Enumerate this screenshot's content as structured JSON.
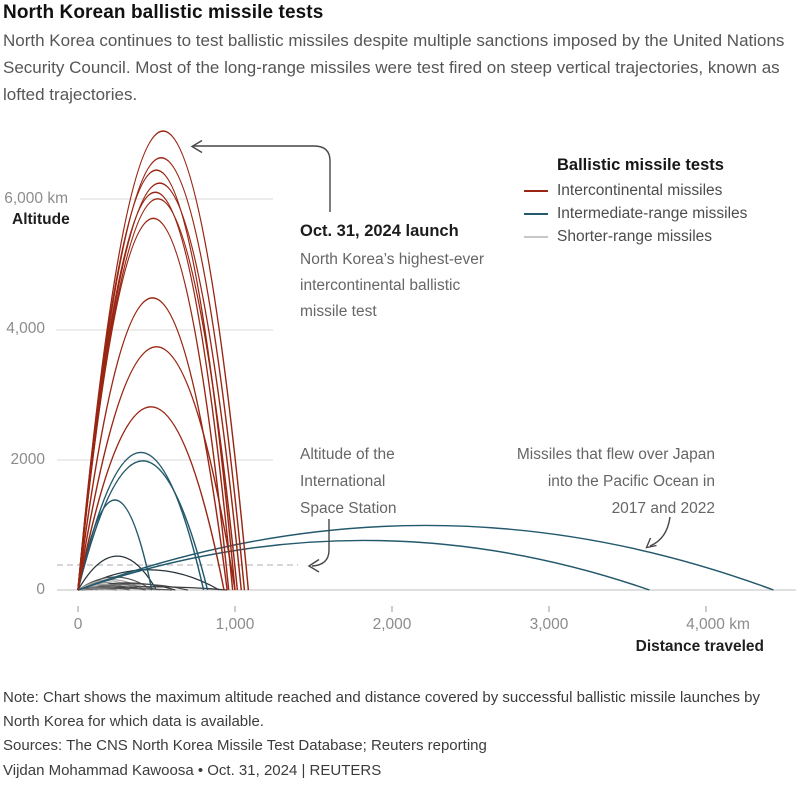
{
  "header": {
    "title": "North Korean ballistic missile tests",
    "subtitle": "North Korea continues to test ballistic missiles despite multiple sanctions imposed by the United Nations Security Council. Most of the long-range missiles were test fired on steep vertical trajectories, known as lofted trajectories."
  },
  "legend": {
    "title": "Ballistic missile tests",
    "items": [
      {
        "label": "Intercontinental missiles",
        "color": "#992613"
      },
      {
        "label": "Intermediate-range missiles",
        "color": "#23596c"
      },
      {
        "label": "Shorter-range missiles",
        "color": "#c7c7c7"
      }
    ]
  },
  "chart_data": {
    "type": "line",
    "title": "North Korean ballistic missile tests",
    "xlabel": "Distance traveled",
    "ylabel": "Altitude",
    "xlim": [
      0,
      4570
    ],
    "ylim": [
      0,
      7200
    ],
    "grid": "horizontal",
    "x_ticks": [
      {
        "value": 0,
        "label": "0"
      },
      {
        "value": 1000,
        "label": "1,000"
      },
      {
        "value": 2000,
        "label": "2,000"
      },
      {
        "value": 3000,
        "label": "3,000"
      },
      {
        "value": 4000,
        "label": "4,000 km"
      }
    ],
    "y_ticks": [
      {
        "value": 0,
        "label": "0"
      },
      {
        "value": 2000,
        "label": "2000"
      },
      {
        "value": 4000,
        "label": "4,000"
      },
      {
        "value": 6000,
        "label": "6,000 km"
      }
    ],
    "iss_dashed_line_altitude_km": 420,
    "series": [
      {
        "name": "Shorter-range missiles",
        "color": "#b9b9b9",
        "trajectories": [
          {
            "apogee_km": 520,
            "range_km": 500,
            "color": "#263238"
          },
          {
            "apogee_km": 310,
            "range_km": 900,
            "color": "#263238"
          },
          {
            "apogee_km": 200,
            "range_km": 470,
            "color": "#555555"
          },
          {
            "apogee_km": 160,
            "range_km": 420,
            "color": "#9e9e9e"
          },
          {
            "apogee_km": 140,
            "range_km": 380,
            "color": "#b9b9b9"
          },
          {
            "apogee_km": 120,
            "range_km": 320,
            "color": "#8a8a8a"
          },
          {
            "apogee_km": 110,
            "range_km": 620,
            "color": "#3a3a3a"
          },
          {
            "apogee_km": 100,
            "range_km": 280,
            "color": "#b9b9b9"
          },
          {
            "apogee_km": 95,
            "range_km": 700,
            "color": "#4a4a4a"
          },
          {
            "apogee_km": 90,
            "range_km": 240,
            "color": "#9e9e9e"
          },
          {
            "apogee_km": 80,
            "range_km": 520,
            "color": "#777777"
          },
          {
            "apogee_km": 70,
            "range_km": 200,
            "color": "#b9b9b9"
          },
          {
            "apogee_km": 60,
            "range_km": 430,
            "color": "#555555"
          },
          {
            "apogee_km": 55,
            "range_km": 160,
            "color": "#9e9e9e"
          },
          {
            "apogee_km": 50,
            "range_km": 950,
            "color": "#3a3a3a"
          },
          {
            "apogee_km": 45,
            "range_km": 120,
            "color": "#8a8a8a"
          },
          {
            "apogee_km": 40,
            "range_km": 330,
            "color": "#666666"
          },
          {
            "apogee_km": 30,
            "range_km": 90,
            "color": "#444444"
          },
          {
            "apogee_km": 25,
            "range_km": 600,
            "color": "#555555"
          },
          {
            "apogee_km": 20,
            "range_km": 250,
            "color": "#888888"
          }
        ]
      },
      {
        "name": "Intermediate-range missiles",
        "color": "#23596c",
        "trajectories": [
          {
            "apogee_km": 2110,
            "range_km": 800
          },
          {
            "apogee_km": 1980,
            "range_km": 825
          },
          {
            "apogee_km": 1380,
            "range_km": 470
          },
          {
            "apogee_km": 990,
            "range_km": 4430
          },
          {
            "apogee_km": 760,
            "range_km": 3640
          }
        ]
      },
      {
        "name": "Intercontinental missiles",
        "color": "#992613",
        "trajectories": [
          {
            "apogee_km": 7040,
            "range_km": 1085
          },
          {
            "apogee_km": 6630,
            "range_km": 1060
          },
          {
            "apogee_km": 6440,
            "range_km": 1000
          },
          {
            "apogee_km": 6240,
            "range_km": 1040
          },
          {
            "apogee_km": 6100,
            "range_km": 985
          },
          {
            "apogee_km": 6000,
            "range_km": 1015
          },
          {
            "apogee_km": 5700,
            "range_km": 960
          },
          {
            "apogee_km": 4480,
            "range_km": 950
          },
          {
            "apogee_km": 3730,
            "range_km": 1000
          },
          {
            "apogee_km": 2810,
            "range_km": 930
          }
        ]
      }
    ]
  },
  "annotations": {
    "launch": {
      "title": "Oct. 31, 2024 launch",
      "body": "North Korea’s highest-ever intercontinental ballistic missile test"
    },
    "iss": {
      "text": "Altitude of the International Space Station"
    },
    "japan": {
      "text": "Missiles that flew over Japan into the Pacific Ocean in 2017 and 2022"
    }
  },
  "axis_titles": {
    "y": "Altitude",
    "x": "Distance traveled"
  },
  "footer": {
    "note": "Note: Chart shows the maximum altitude reached and distance covered by successful ballistic missile launches by North Korea for which data is available.",
    "sources": "Sources: The CNS North Korea Missile Test Database; Reuters reporting",
    "byline": "Vijdan Mohammad Kawoosa • Oct. 31, 2024 | REUTERS"
  }
}
